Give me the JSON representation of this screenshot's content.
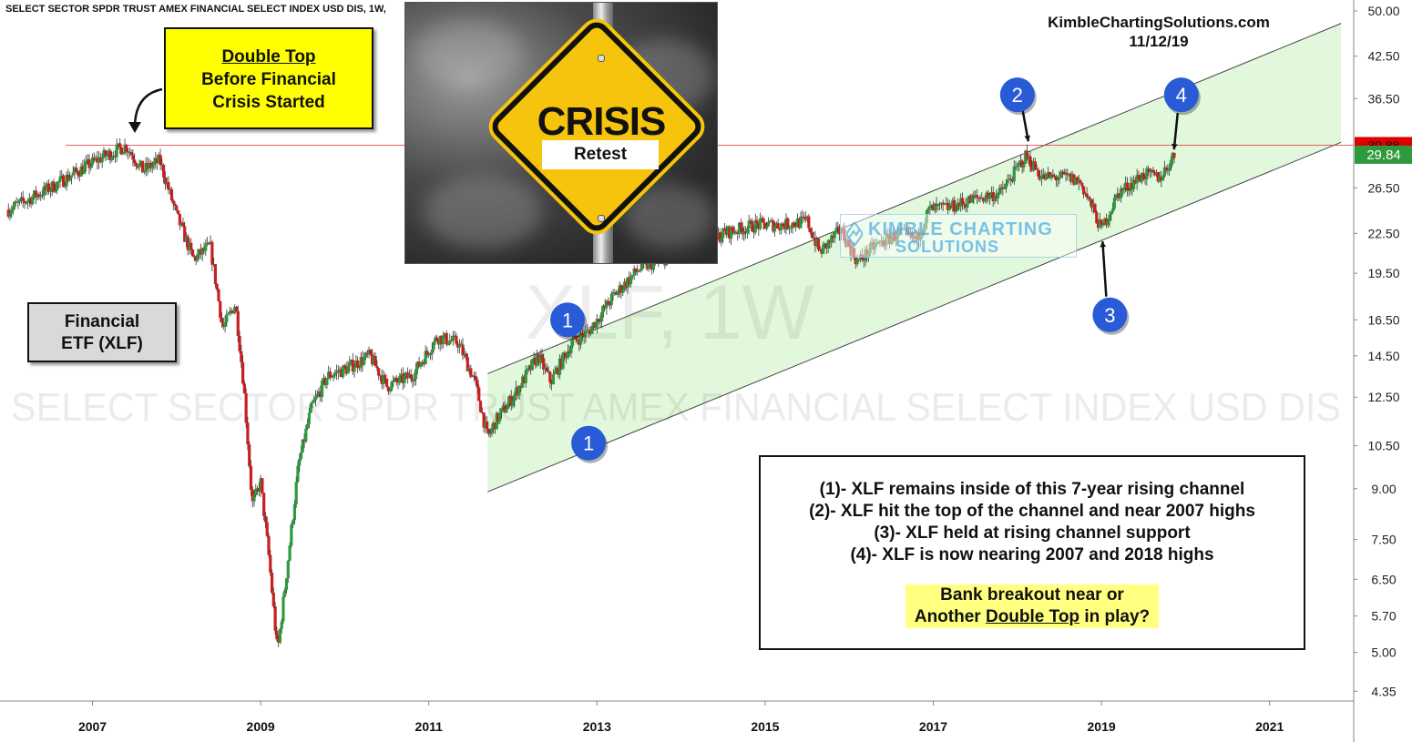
{
  "header": {
    "symbol_line": "SELECT SECTOR SPDR TRUST AMEX FINANCIAL SELECT INDEX USD DIS, 1W,",
    "brand": "KimbleChartingSolutions.com",
    "date": "11/12/19"
  },
  "watermark": {
    "big": "XLF, 1W",
    "name": "SELECT SECTOR SPDR TRUST AMEX FINANCIAL SELECT INDEX USD DIS"
  },
  "logo": {
    "line1": "KIMBLE CHARTING",
    "line2": "SOLUTIONS"
  },
  "callouts": {
    "double_top_title": "Double Top",
    "double_top_line2": "Before Financial",
    "double_top_line3": "Crisis Started",
    "etf_line1": "Financial",
    "etf_line2": "ETF (XLF)"
  },
  "image": {
    "sign_text": "CRISIS",
    "sign_sub": "Retest"
  },
  "notes": {
    "lines": [
      "(1)- XLF remains inside of this 7-year rising channel",
      "(2)- XLF hit the top of the channel and near 2007 highs",
      "(3)- XLF held at rising channel support",
      "(4)- XLF is now nearing 2007 and 2018 highs"
    ],
    "question_line1": "Bank breakout near or",
    "question_pre": "Another ",
    "question_underlined": "Double Top",
    "question_post": " in play?"
  },
  "markers": [
    "1",
    "1",
    "2",
    "3",
    "4"
  ],
  "colors": {
    "up": "#2e9a3c",
    "down": "#c82020",
    "channel_fill": "#d8f5d0",
    "marker": "#2a5bd7",
    "resistance": "#e03030",
    "price_tag": "#2e9a3c",
    "resistance_tag": "#e00000"
  },
  "chart_data": {
    "type": "candlestick",
    "ticker": "XLF",
    "interval": "1W",
    "y_scale": "log",
    "ylim": [
      4.2,
      52
    ],
    "y_ticks": [
      50.0,
      42.5,
      36.5,
      30.88,
      29.84,
      26.5,
      22.5,
      19.5,
      16.5,
      14.5,
      12.5,
      10.5,
      9.0,
      7.5,
      6.5,
      5.7,
      5.0,
      4.35
    ],
    "y_tick_labels": [
      "50.00",
      "42.50",
      "36.50",
      "30.88",
      "29.84",
      "26.50",
      "22.50",
      "19.50",
      "16.50",
      "14.50",
      "12.50",
      "10.50",
      "9.00",
      "7.50",
      "6.50",
      "5.70",
      "5.00",
      "4.35"
    ],
    "x_ticks": [
      2007,
      2009,
      2011,
      2013,
      2015,
      2017,
      2019,
      2021
    ],
    "x_tick_labels": [
      "2007",
      "2009",
      "2011",
      "2013",
      "2015",
      "2017",
      "2019",
      "2021"
    ],
    "xlim": [
      2005.9,
      2022.0
    ],
    "last_price": 29.84,
    "resistance_level": 30.88,
    "price_path": [
      [
        2006.0,
        24.5
      ],
      [
        2006.5,
        26.5
      ],
      [
        2006.9,
        28.5
      ],
      [
        2007.1,
        29.5
      ],
      [
        2007.4,
        30.8
      ],
      [
        2007.6,
        28.2
      ],
      [
        2007.8,
        29.2
      ],
      [
        2008.0,
        24.0
      ],
      [
        2008.2,
        20.5
      ],
      [
        2008.4,
        21.5
      ],
      [
        2008.55,
        16.0
      ],
      [
        2008.7,
        17.5
      ],
      [
        2008.8,
        13.0
      ],
      [
        2008.9,
        8.5
      ],
      [
        2009.0,
        9.2
      ],
      [
        2009.1,
        7.0
      ],
      [
        2009.2,
        5.0
      ],
      [
        2009.3,
        6.5
      ],
      [
        2009.45,
        9.8
      ],
      [
        2009.6,
        12.0
      ],
      [
        2009.8,
        13.5
      ],
      [
        2010.0,
        13.8
      ],
      [
        2010.3,
        14.5
      ],
      [
        2010.5,
        13.0
      ],
      [
        2010.8,
        13.5
      ],
      [
        2011.1,
        15.5
      ],
      [
        2011.35,
        15.2
      ],
      [
        2011.55,
        13.2
      ],
      [
        2011.7,
        10.8
      ],
      [
        2011.8,
        11.5
      ],
      [
        2012.0,
        12.5
      ],
      [
        2012.3,
        14.5
      ],
      [
        2012.45,
        13.2
      ],
      [
        2012.7,
        15.2
      ],
      [
        2012.9,
        15.8
      ],
      [
        2013.2,
        18.0
      ],
      [
        2013.5,
        19.8
      ],
      [
        2013.9,
        20.8
      ],
      [
        2014.2,
        21.2
      ],
      [
        2014.5,
        22.5
      ],
      [
        2014.9,
        23.2
      ],
      [
        2015.2,
        23.2
      ],
      [
        2015.5,
        23.5
      ],
      [
        2015.65,
        21.0
      ],
      [
        2015.9,
        22.8
      ],
      [
        2016.1,
        20.3
      ],
      [
        2016.3,
        21.5
      ],
      [
        2016.6,
        22.5
      ],
      [
        2016.8,
        22.0
      ],
      [
        2016.95,
        24.5
      ],
      [
        2017.2,
        24.7
      ],
      [
        2017.5,
        25.5
      ],
      [
        2017.8,
        26.0
      ],
      [
        2018.1,
        29.7
      ],
      [
        2018.3,
        27.5
      ],
      [
        2018.6,
        27.5
      ],
      [
        2018.75,
        27.0
      ],
      [
        2018.9,
        24.5
      ],
      [
        2019.0,
        22.8
      ],
      [
        2019.2,
        26.0
      ],
      [
        2019.5,
        27.8
      ],
      [
        2019.7,
        27.5
      ],
      [
        2019.87,
        29.84
      ]
    ],
    "channel": {
      "upper": [
        [
          2011.7,
          13.6
        ],
        [
          2021.85,
          47.8
        ]
      ],
      "lower": [
        [
          2011.7,
          8.9
        ],
        [
          2021.85,
          31.2
        ]
      ]
    },
    "annotations": [
      {
        "label": "1",
        "x": 2012.65,
        "y": 16.5
      },
      {
        "label": "1",
        "x": 2012.9,
        "y": 10.6
      },
      {
        "label": "2",
        "x": 2018.0,
        "y": 37.0
      },
      {
        "label": "3",
        "x": 2019.1,
        "y": 16.8
      },
      {
        "label": "4",
        "x": 2019.95,
        "y": 37.0
      }
    ]
  }
}
